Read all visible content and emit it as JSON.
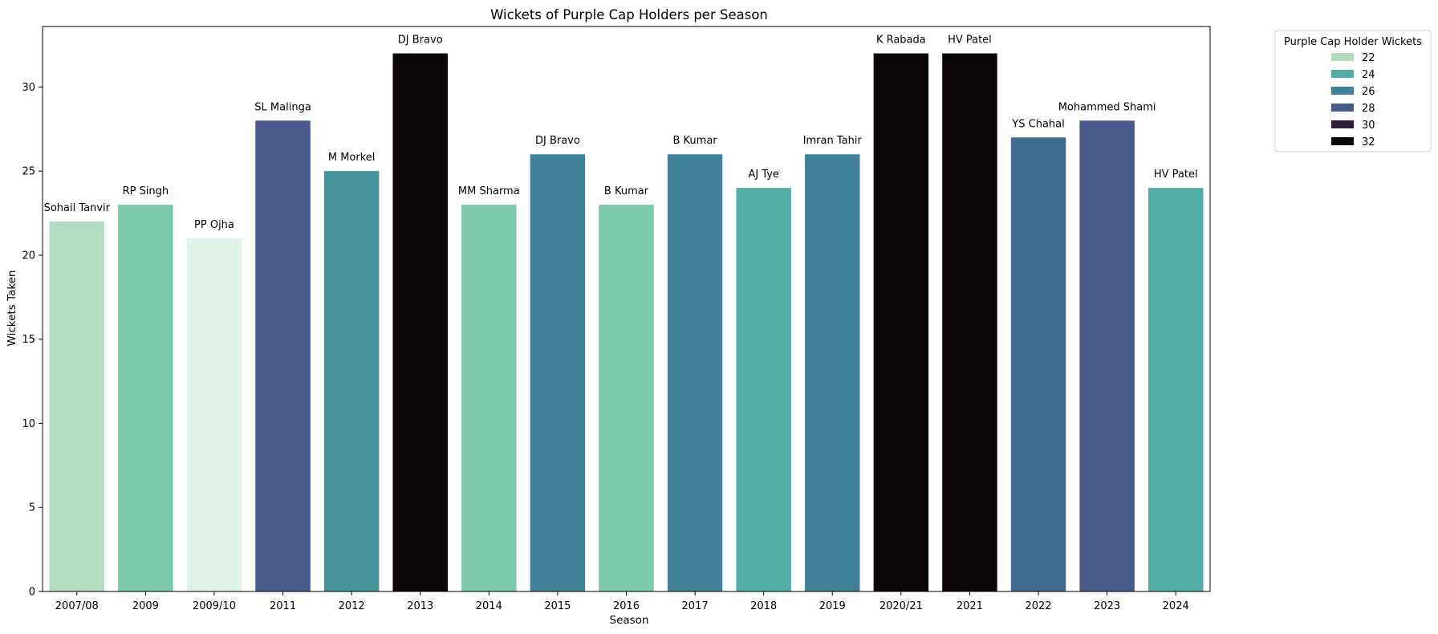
{
  "chart_data": {
    "type": "bar",
    "title": "Wickets of Purple Cap Holders per Season",
    "xlabel": "Season",
    "ylabel": "Wickets Taken",
    "ylim": [
      0,
      33.6
    ],
    "yticks": [
      0,
      5,
      10,
      15,
      20,
      25,
      30
    ],
    "categories": [
      "2007/08",
      "2009",
      "2009/10",
      "2011",
      "2012",
      "2013",
      "2014",
      "2015",
      "2016",
      "2017",
      "2018",
      "2019",
      "2020/21",
      "2021",
      "2022",
      "2023",
      "2024"
    ],
    "values": [
      22,
      23,
      21,
      28,
      25,
      32,
      23,
      26,
      23,
      26,
      24,
      26,
      32,
      32,
      27,
      28,
      24
    ],
    "bar_labels": [
      "Sohail Tanvir",
      "RP Singh",
      "PP Ojha",
      "SL Malinga",
      "M Morkel",
      "DJ Bravo",
      "MM Sharma",
      "DJ Bravo",
      "B Kumar",
      "B Kumar",
      "AJ Tye",
      "Imran Tahir",
      "K Rabada",
      "HV Patel",
      "YS Chahal",
      "Mohammed Shami",
      "HV Patel"
    ],
    "bar_colors": [
      "#b3ddc3",
      "#7bc8aa",
      "#e0f3e8",
      "#48598c",
      "#45959b",
      "#0b0506",
      "#7bc8aa",
      "#42819a",
      "#7bc8aa",
      "#42819a",
      "#52ada4",
      "#42819a",
      "#0b0506",
      "#0b0506",
      "#426b91",
      "#48598c",
      "#52ada4"
    ],
    "grid": false,
    "legend": {
      "title": "Purple Cap Holder Wickets",
      "placement": "outside-top-right",
      "entries": [
        {
          "label": "22",
          "color": "#b3ddc3"
        },
        {
          "label": "24",
          "color": "#52ada4"
        },
        {
          "label": "26",
          "color": "#42819a"
        },
        {
          "label": "28",
          "color": "#48598c"
        },
        {
          "label": "30",
          "color": "#2e1e3c"
        },
        {
          "label": "32",
          "color": "#0b0506"
        }
      ]
    }
  }
}
